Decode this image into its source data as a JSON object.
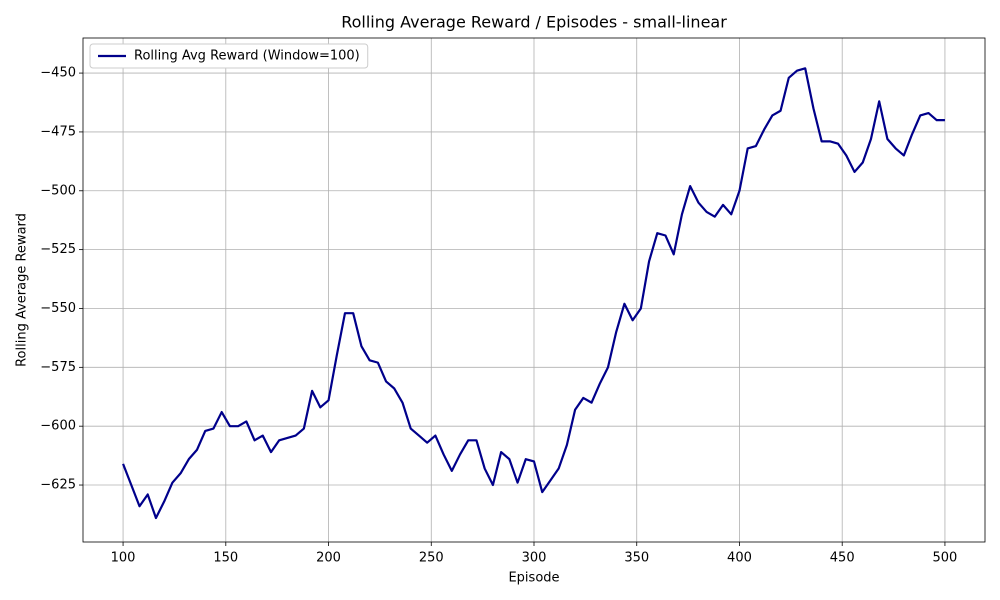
{
  "chart_data": {
    "type": "line",
    "title": "Rolling Average Reward / Episodes - small-linear",
    "x_label": "Episode",
    "y_label": "Rolling Average Reward",
    "x": [
      100,
      104,
      108,
      112,
      116,
      120,
      124,
      128,
      132,
      136,
      140,
      144,
      148,
      152,
      156,
      160,
      164,
      168,
      172,
      176,
      180,
      184,
      188,
      192,
      196,
      200,
      204,
      208,
      212,
      216,
      220,
      224,
      228,
      232,
      236,
      240,
      244,
      248,
      252,
      256,
      260,
      264,
      268,
      272,
      276,
      280,
      284,
      288,
      292,
      296,
      300,
      304,
      308,
      312,
      316,
      320,
      324,
      328,
      332,
      336,
      340,
      344,
      348,
      352,
      356,
      360,
      364,
      368,
      372,
      376,
      380,
      384,
      388,
      392,
      396,
      400,
      404,
      408,
      412,
      416,
      420,
      424,
      428,
      432,
      436,
      440,
      444,
      448,
      452,
      456,
      460,
      464,
      468,
      472,
      476,
      480,
      484,
      488,
      492,
      496,
      500
    ],
    "series": [
      {
        "name": "Rolling Avg Reward (Window=100)",
        "color": "#00008b",
        "values": [
          -616,
          -625,
          -634,
          -629,
          -639,
          -632,
          -624,
          -620,
          -614,
          -610,
          -602,
          -601,
          -594,
          -600,
          -600,
          -598,
          -606,
          -604,
          -611,
          -606,
          -605,
          -604,
          -601,
          -585,
          -592,
          -589,
          -570,
          -552,
          -552,
          -566,
          -572,
          -573,
          -581,
          -584,
          -590,
          -601,
          -604,
          -607,
          -604,
          -612,
          -619,
          -612,
          -606,
          -606,
          -618,
          -625,
          -611,
          -614,
          -624,
          -614,
          -615,
          -628,
          -623,
          -618,
          -608,
          -593,
          -588,
          -590,
          -582,
          -575,
          -560,
          -548,
          -555,
          -550,
          -530,
          -518,
          -519,
          -527,
          -510,
          -498,
          -505,
          -509,
          -511,
          -506,
          -510,
          -500,
          -482,
          -481,
          -474,
          -468,
          -466,
          -452,
          -449,
          -448,
          -465,
          -479,
          -479,
          -480,
          -485,
          -492,
          -488,
          -478,
          -462,
          -478,
          -482,
          -485,
          -476,
          -468,
          -467,
          -470,
          -470
        ]
      }
    ],
    "xlim": [
      80.5,
      519.5
    ],
    "ylim": [
      -649.2,
      -435.1
    ],
    "xticks": [
      100,
      150,
      200,
      250,
      300,
      350,
      400,
      450,
      500
    ],
    "yticks": [
      {
        "value": -625,
        "label": "−625"
      },
      {
        "value": -600,
        "label": "−600"
      },
      {
        "value": -575,
        "label": "−575"
      },
      {
        "value": -550,
        "label": "−550"
      },
      {
        "value": -525,
        "label": "−525"
      },
      {
        "value": -500,
        "label": "−500"
      },
      {
        "value": -475,
        "label": "−475"
      },
      {
        "value": -450,
        "label": "−450"
      }
    ],
    "grid": true,
    "legend": "upper-left"
  }
}
